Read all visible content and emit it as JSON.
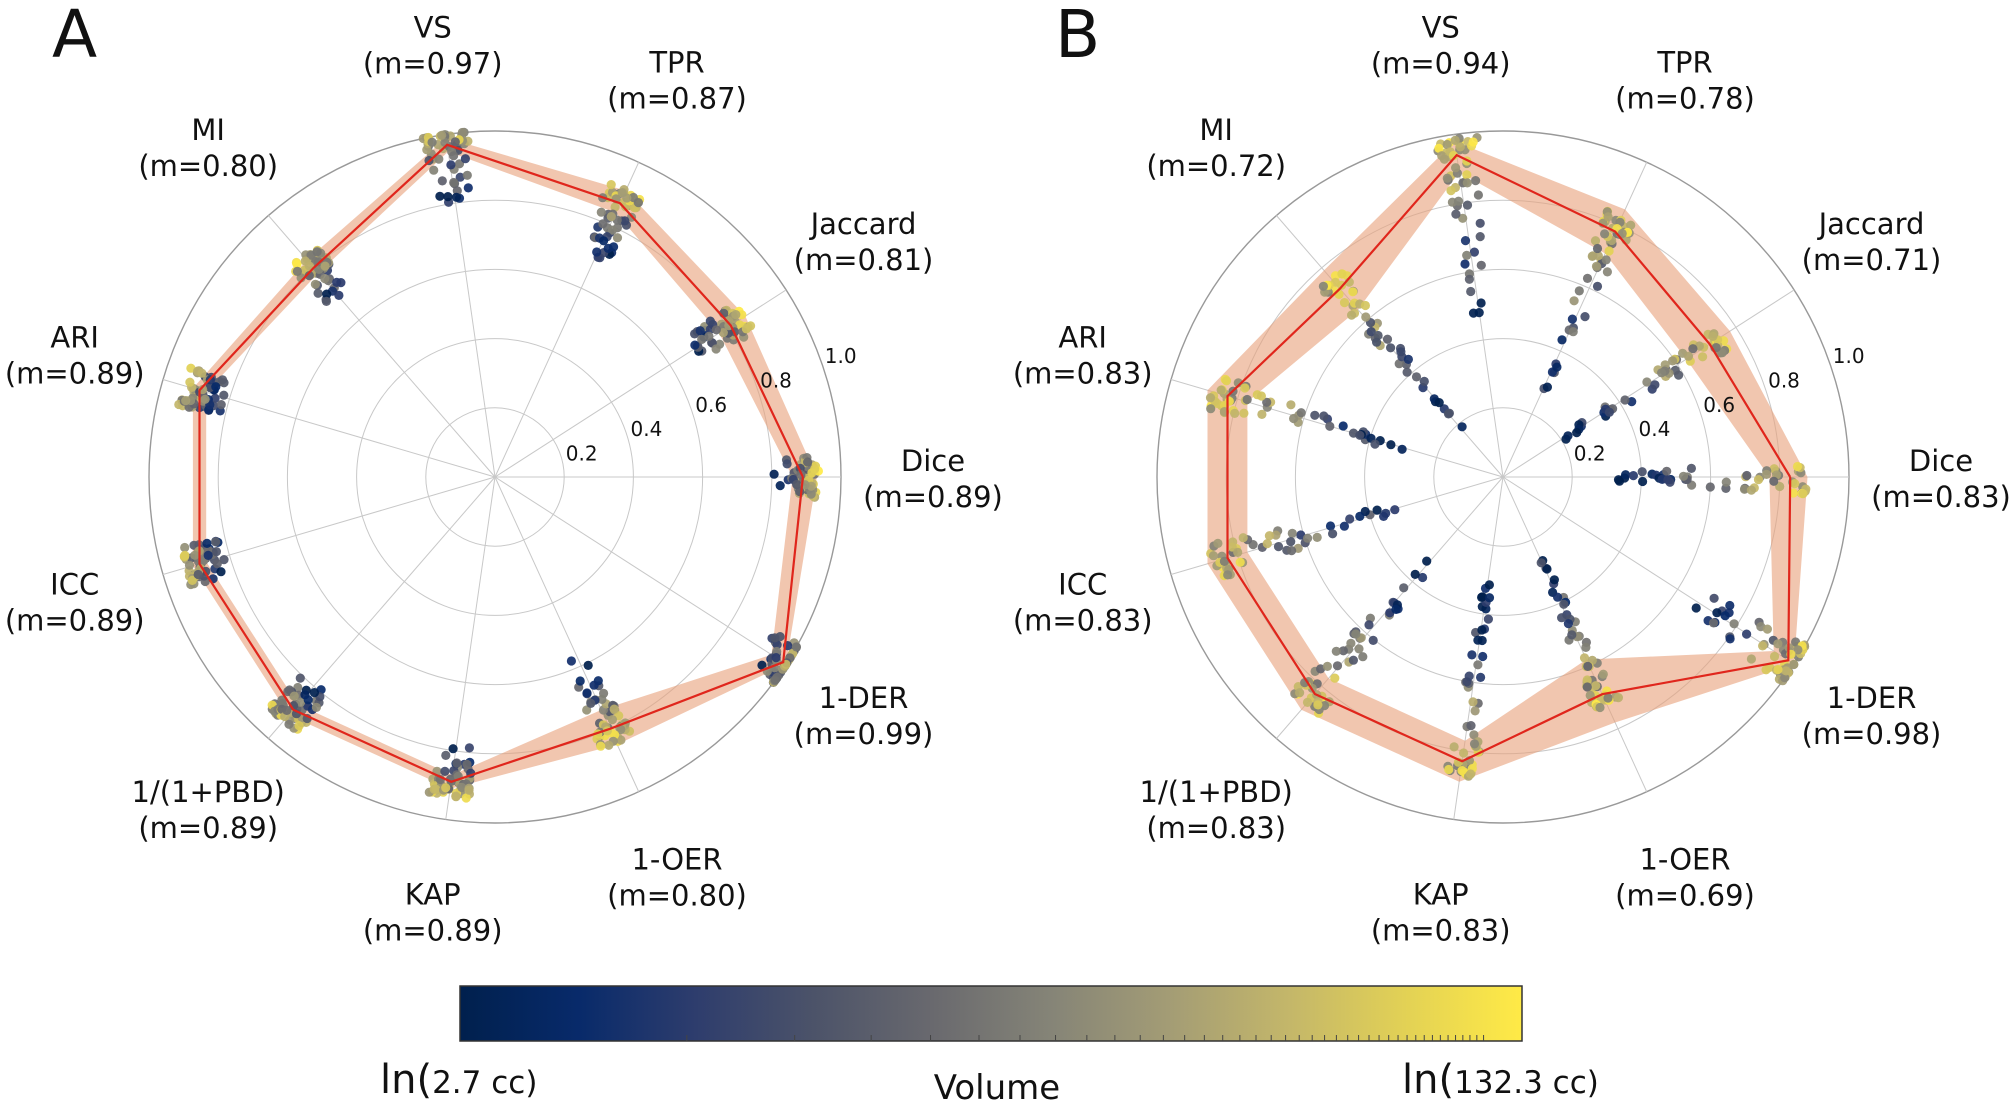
{
  "colors": {
    "mean_line": "#e0261c",
    "band": "#e8a07a",
    "grid": "#c8c8c8",
    "colormap": [
      "#00204d",
      "#082a6a",
      "#2e3d6d",
      "#4c5369",
      "#69696e",
      "#858477",
      "#a39c75",
      "#c3b66a",
      "#e2d155",
      "#ffea46"
    ]
  },
  "chart_data": [
    {
      "type": "radar",
      "panel": "A",
      "rlim": [
        0,
        1.0
      ],
      "rticks": [
        0.2,
        0.4,
        0.6,
        0.8,
        1.0
      ],
      "rtick_labels": [
        "0.2",
        "0.4",
        "0.6",
        "0.8",
        "1.0"
      ],
      "axes": [
        {
          "name": "Dice",
          "mean_label": "(m=0.89)",
          "mean": 0.89
        },
        {
          "name": "Jaccard",
          "mean_label": "(m=0.81)",
          "mean": 0.81
        },
        {
          "name": "TPR",
          "mean_label": "(m=0.87)",
          "mean": 0.87
        },
        {
          "name": "VS",
          "mean_label": "(m=0.97)",
          "mean": 0.97
        },
        {
          "name": "MI",
          "mean_label": "(m=0.80)",
          "mean": 0.8
        },
        {
          "name": "ARI",
          "mean_label": "(m=0.89)",
          "mean": 0.89
        },
        {
          "name": "ICC",
          "mean_label": "(m=0.89)",
          "mean": 0.89
        },
        {
          "name": "1/(1+PBD)",
          "mean_label": "(m=0.89)",
          "mean": 0.89
        },
        {
          "name": "KAP",
          "mean_label": "(m=0.89)",
          "mean": 0.89
        },
        {
          "name": "1-OER",
          "mean_label": "(m=0.80)",
          "mean": 0.8
        },
        {
          "name": "1-DER",
          "mean_label": "(m=0.99)",
          "mean": 0.99
        }
      ],
      "band_low": [
        0.86,
        0.77,
        0.84,
        0.95,
        0.78,
        0.87,
        0.87,
        0.87,
        0.87,
        0.74,
        0.95
      ],
      "band_high": [
        0.93,
        0.86,
        0.91,
        0.99,
        0.83,
        0.91,
        0.91,
        0.91,
        0.91,
        0.85,
        1.0
      ],
      "point_spread": [
        0.1,
        0.16,
        0.2,
        0.2,
        0.14,
        0.1,
        0.1,
        0.12,
        0.12,
        0.26,
        0.08
      ]
    },
    {
      "type": "radar",
      "panel": "B",
      "rlim": [
        0,
        1.0
      ],
      "rticks": [
        0.2,
        0.4,
        0.6,
        0.8,
        1.0
      ],
      "rtick_labels": [
        "0.2",
        "0.4",
        "0.6",
        "0.8",
        "1.0"
      ],
      "axes": [
        {
          "name": "Dice",
          "mean_label": "(m=0.83)",
          "mean": 0.83
        },
        {
          "name": "Jaccard",
          "mean_label": "(m=0.71)",
          "mean": 0.71
        },
        {
          "name": "TPR",
          "mean_label": "(m=0.78)",
          "mean": 0.78
        },
        {
          "name": "VS",
          "mean_label": "(m=0.94)",
          "mean": 0.94
        },
        {
          "name": "MI",
          "mean_label": "(m=0.72)",
          "mean": 0.72
        },
        {
          "name": "ARI",
          "mean_label": "(m=0.83)",
          "mean": 0.83
        },
        {
          "name": "ICC",
          "mean_label": "(m=0.83)",
          "mean": 0.83
        },
        {
          "name": "1/(1+PBD)",
          "mean_label": "(m=0.83)",
          "mean": 0.83
        },
        {
          "name": "KAP",
          "mean_label": "(m=0.83)",
          "mean": 0.83
        },
        {
          "name": "1-OER",
          "mean_label": "(m=0.69)",
          "mean": 0.69
        },
        {
          "name": "1-DER",
          "mean_label": "(m=0.98)",
          "mean": 0.98
        }
      ],
      "band_low": [
        0.77,
        0.63,
        0.71,
        0.89,
        0.64,
        0.77,
        0.77,
        0.77,
        0.77,
        0.58,
        0.93
      ],
      "band_high": [
        0.88,
        0.78,
        0.85,
        0.98,
        0.79,
        0.89,
        0.89,
        0.89,
        0.89,
        0.78,
        1.0
      ],
      "point_spread": [
        0.55,
        0.55,
        0.55,
        0.55,
        0.55,
        0.55,
        0.55,
        0.55,
        0.55,
        0.5,
        0.35
      ]
    }
  ],
  "colorbar": {
    "label": "Volume",
    "min_prefix": "ln(",
    "min_value": "2.7 cc)",
    "max_prefix": "ln(",
    "max_value": "132.3 cc)"
  }
}
